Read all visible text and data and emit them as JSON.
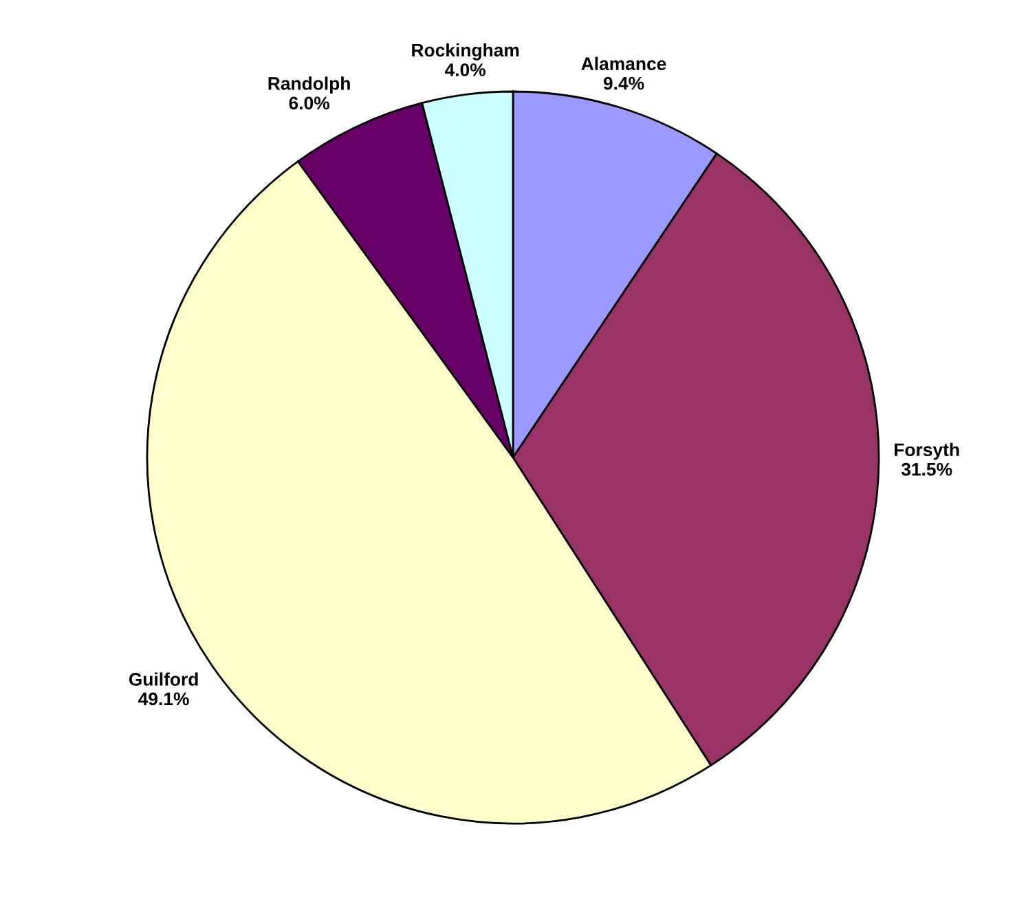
{
  "chart_data": {
    "type": "pie",
    "categories": [
      "Alamance",
      "Forsyth",
      "Guilford",
      "Randolph",
      "Rockingham"
    ],
    "values": [
      9.4,
      31.5,
      49.1,
      6.0,
      4.0
    ],
    "value_labels": [
      "9.4%",
      "31.5%",
      "49.1%",
      "6.0%",
      "4.0%"
    ],
    "colors": [
      "#9999ff",
      "#993366",
      "#ffffcc",
      "#660066",
      "#ccffff"
    ],
    "legend": false
  }
}
